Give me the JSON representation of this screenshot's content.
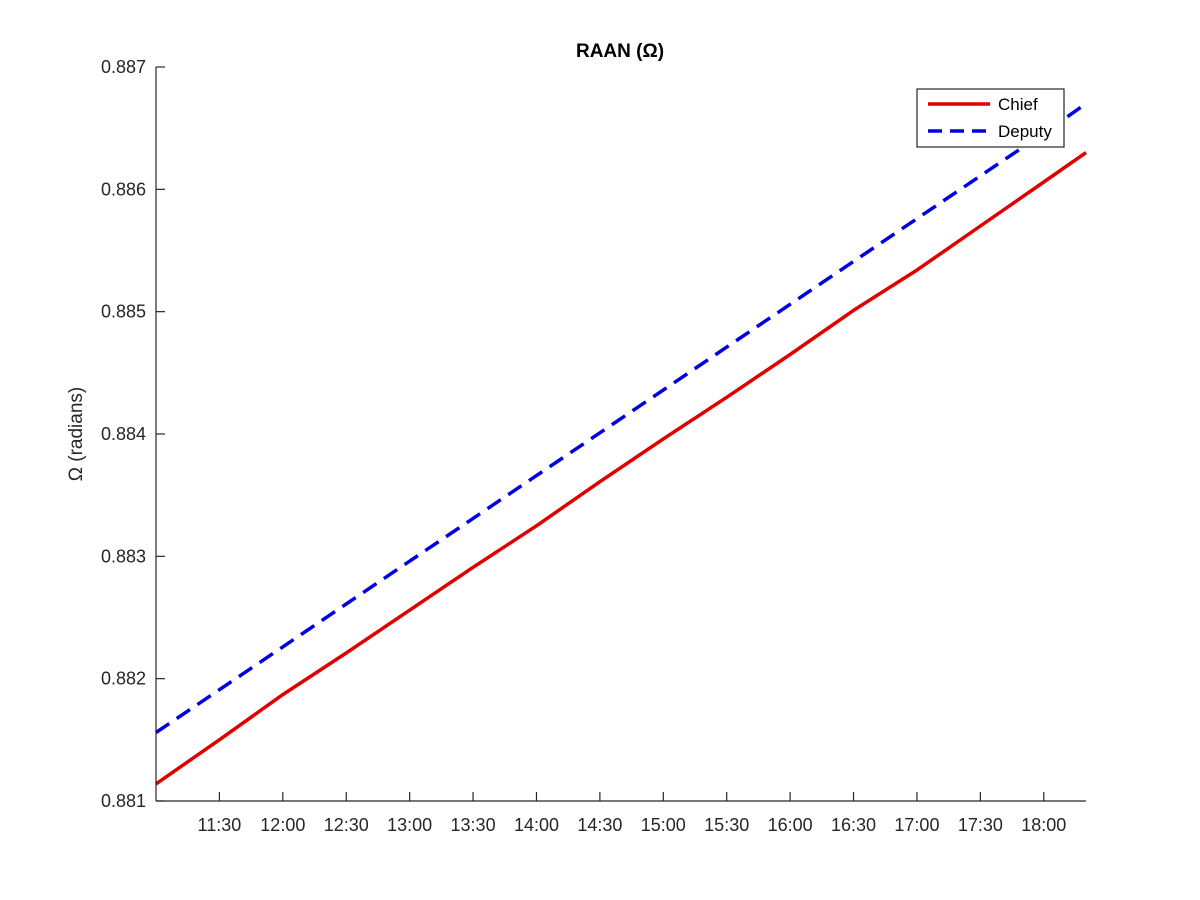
{
  "chart_data": {
    "type": "line",
    "title": "RAAN (Ω)",
    "xlabel": "",
    "ylabel": "Ω (radians)",
    "x_unit": "hours",
    "xlim": [
      11.0,
      18.333
    ],
    "ylim": [
      0.881,
      0.887
    ],
    "x_ticks": [
      {
        "value": 11.5,
        "label": "11:30"
      },
      {
        "value": 12.0,
        "label": "12:00"
      },
      {
        "value": 12.5,
        "label": "12:30"
      },
      {
        "value": 13.0,
        "label": "13:00"
      },
      {
        "value": 13.5,
        "label": "13:30"
      },
      {
        "value": 14.0,
        "label": "14:00"
      },
      {
        "value": 14.5,
        "label": "14:30"
      },
      {
        "value": 15.0,
        "label": "15:00"
      },
      {
        "value": 15.5,
        "label": "15:30"
      },
      {
        "value": 16.0,
        "label": "16:00"
      },
      {
        "value": 16.5,
        "label": "16:30"
      },
      {
        "value": 17.0,
        "label": "17:00"
      },
      {
        "value": 17.5,
        "label": "17:30"
      },
      {
        "value": 18.0,
        "label": "18:00"
      }
    ],
    "y_ticks": [
      {
        "value": 0.881,
        "label": "0.881"
      },
      {
        "value": 0.882,
        "label": "0.882"
      },
      {
        "value": 0.883,
        "label": "0.883"
      },
      {
        "value": 0.884,
        "label": "0.884"
      },
      {
        "value": 0.885,
        "label": "0.885"
      },
      {
        "value": 0.886,
        "label": "0.886"
      },
      {
        "value": 0.887,
        "label": "0.887"
      }
    ],
    "grid": false,
    "legend_position": "top-right",
    "series": [
      {
        "name": "Chief",
        "color": "#e00000",
        "style": "solid",
        "x": [
          11.0,
          11.5,
          12.0,
          12.5,
          13.0,
          13.5,
          14.0,
          14.5,
          15.0,
          15.5,
          16.0,
          16.5,
          17.0,
          17.5,
          18.0,
          18.333
        ],
        "y": [
          0.88114,
          0.8815,
          0.88187,
          0.88221,
          0.88256,
          0.88291,
          0.88325,
          0.88361,
          0.88396,
          0.8843,
          0.88465,
          0.88501,
          0.88534,
          0.8857,
          0.88606,
          0.8863
        ]
      },
      {
        "name": "Deputy",
        "color": "#0000e0",
        "style": "dashed",
        "x": [
          11.0,
          11.5,
          12.0,
          12.5,
          13.0,
          13.5,
          14.0,
          14.5,
          15.0,
          15.5,
          16.0,
          16.5,
          17.0,
          17.5,
          18.0,
          18.333
        ],
        "y": [
          0.88156,
          0.88191,
          0.88226,
          0.88261,
          0.88296,
          0.88331,
          0.88366,
          0.88401,
          0.88436,
          0.88471,
          0.88506,
          0.88541,
          0.88576,
          0.88611,
          0.88646,
          0.8867
        ]
      }
    ]
  }
}
